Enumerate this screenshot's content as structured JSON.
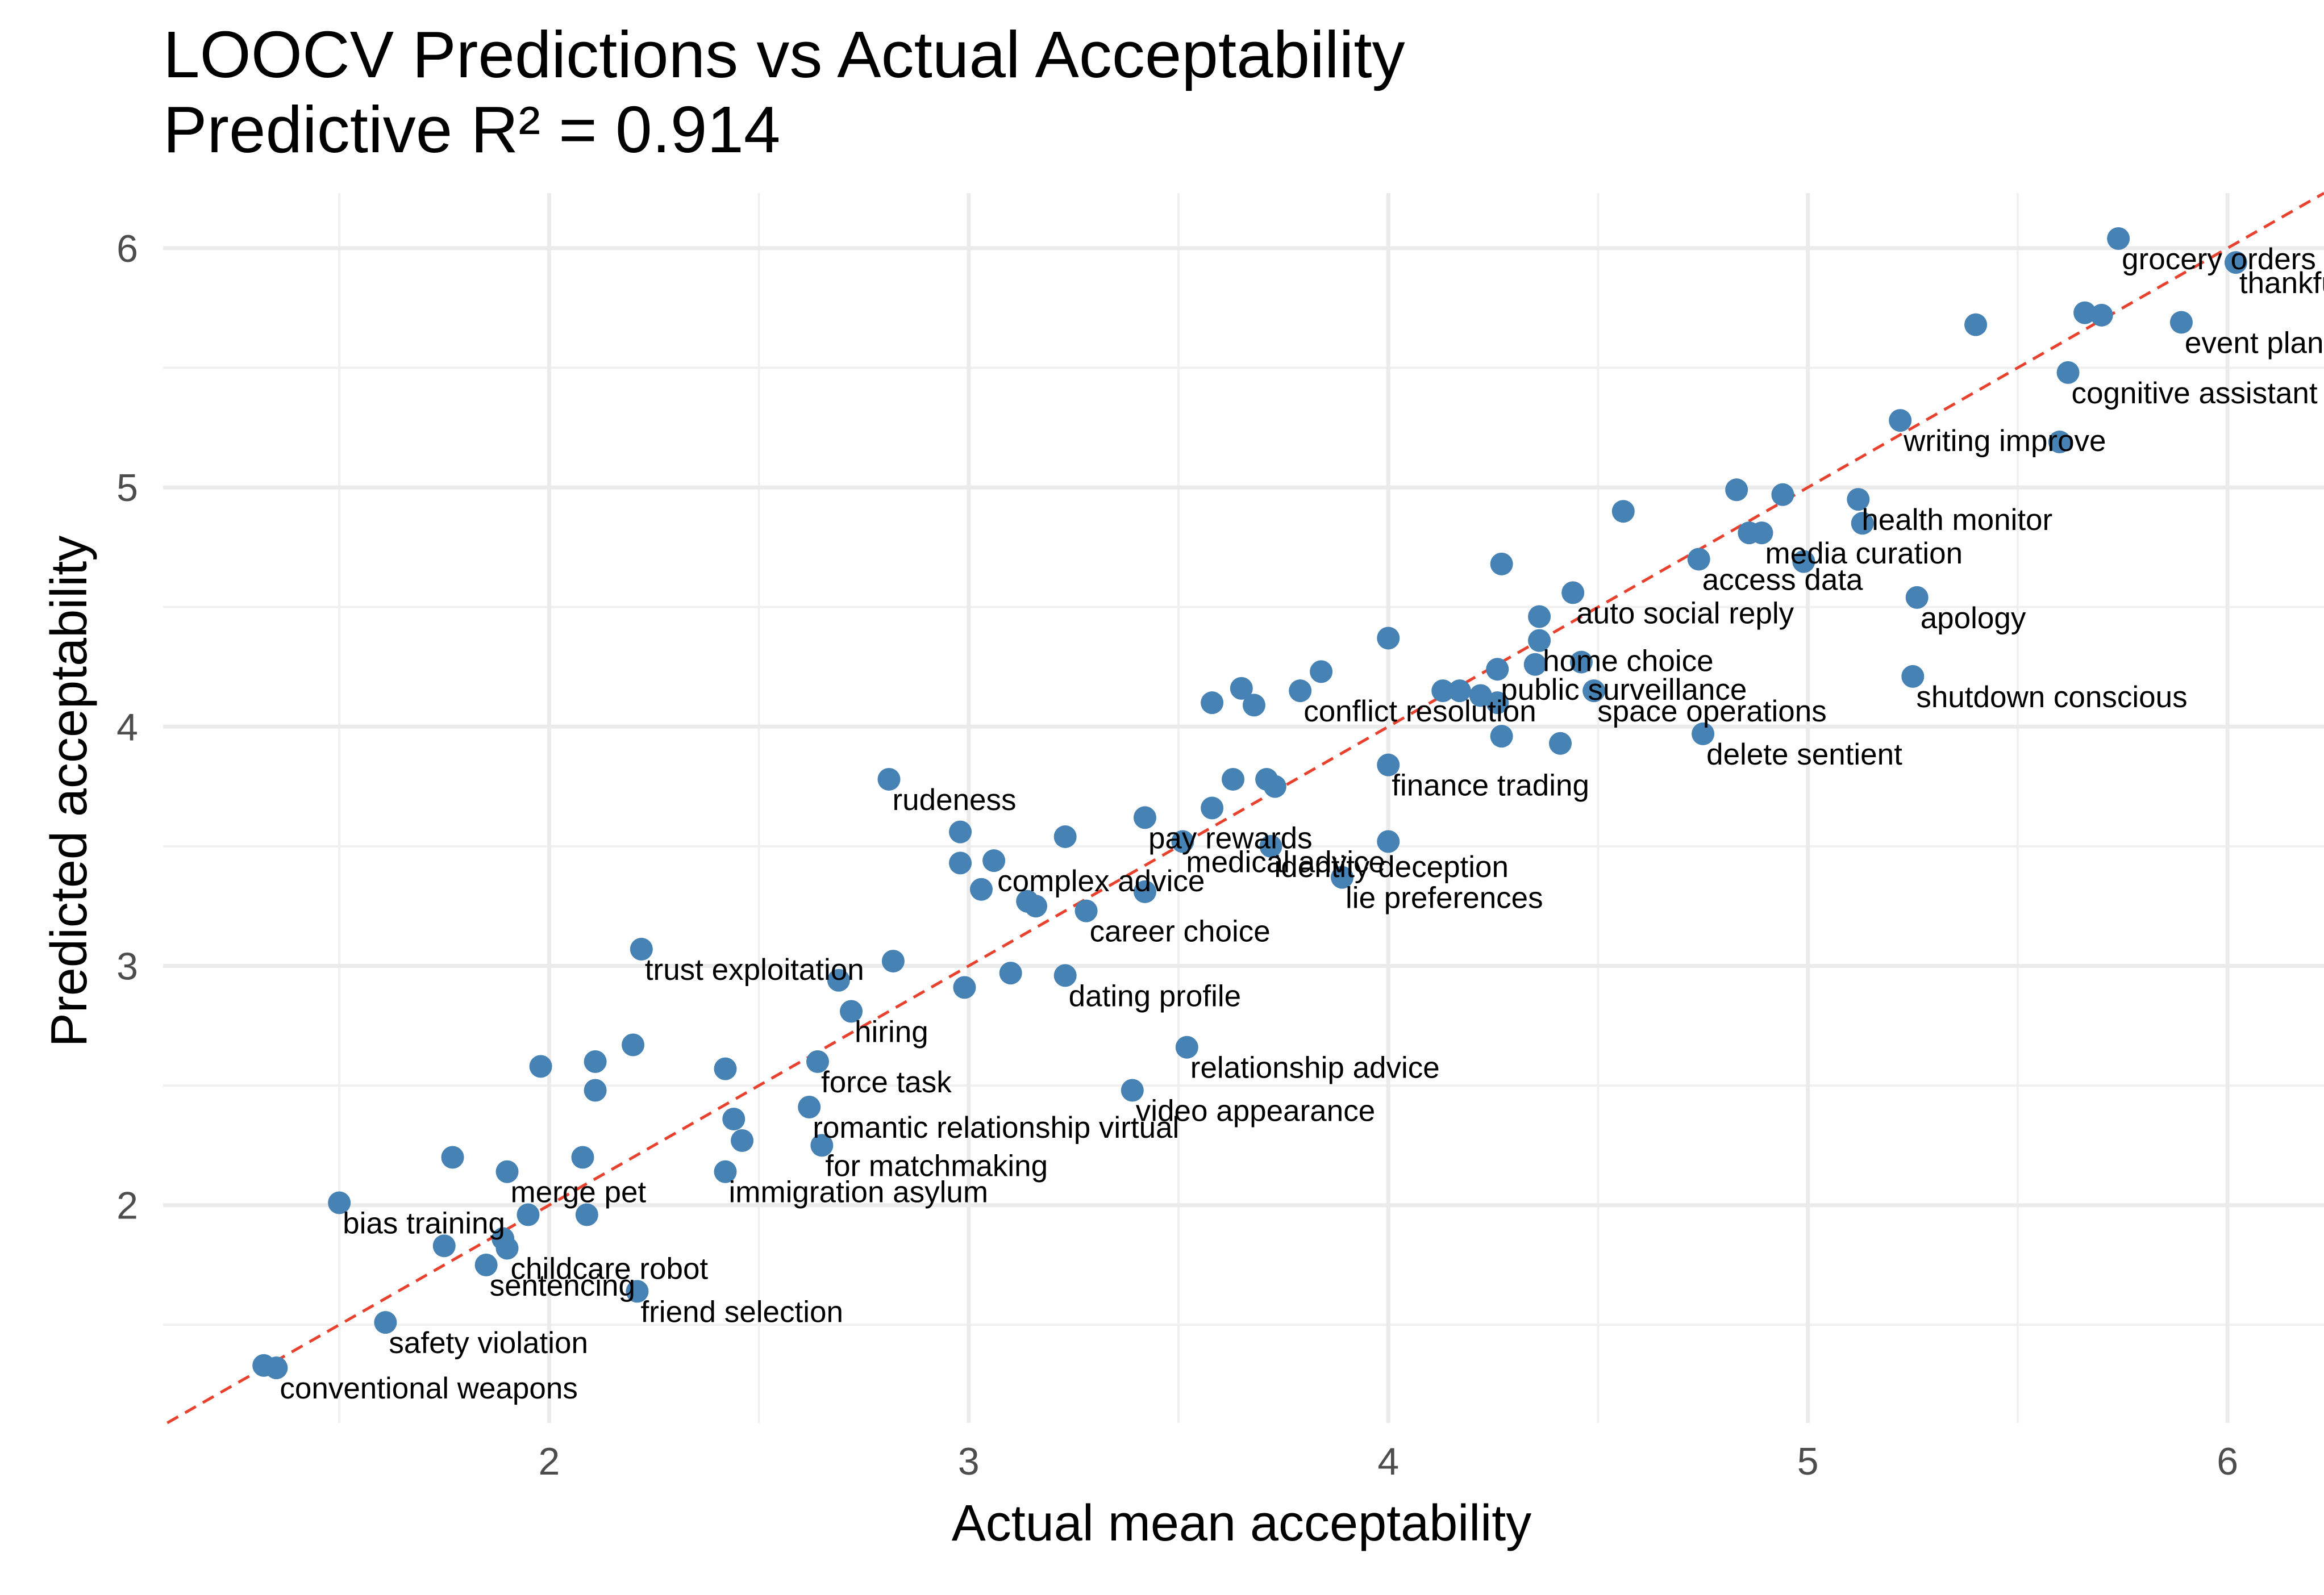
{
  "chart_data": {
    "type": "scatter",
    "title": "LOOCV Predictions vs Actual Acceptability",
    "subtitle": "Predictive R² = 0.914",
    "xlabel": "Actual mean acceptability",
    "ylabel": "Predicted acceptability",
    "xlim": [
      1.08,
      6.23
    ],
    "ylim": [
      1.09,
      6.23
    ],
    "x_ticks": [
      "2",
      "3",
      "4",
      "5",
      "6"
    ],
    "y_ticks": [
      "2",
      "3",
      "4",
      "5",
      "6"
    ],
    "grid": true,
    "point_color": "#4682b4",
    "reference_line": {
      "type": "identity",
      "slope": 1,
      "intercept": 0,
      "style": "dashed",
      "color": "#e8412d"
    },
    "points": [
      {
        "x": 5.74,
        "y": 6.04,
        "label": "grocery orders"
      },
      {
        "x": 6.02,
        "y": 5.94,
        "label": "thankful"
      },
      {
        "x": 5.66,
        "y": 5.73
      },
      {
        "x": 5.7,
        "y": 5.72
      },
      {
        "x": 5.89,
        "y": 5.69,
        "label": "event planning"
      },
      {
        "x": 5.4,
        "y": 5.68
      },
      {
        "x": 5.62,
        "y": 5.48,
        "label": "cognitive assistant"
      },
      {
        "x": 5.22,
        "y": 5.28,
        "label": "writing improve"
      },
      {
        "x": 5.6,
        "y": 5.19
      },
      {
        "x": 4.83,
        "y": 4.99
      },
      {
        "x": 4.94,
        "y": 4.97
      },
      {
        "x": 5.12,
        "y": 4.95,
        "label": "health monitor"
      },
      {
        "x": 4.56,
        "y": 4.9
      },
      {
        "x": 5.13,
        "y": 4.85
      },
      {
        "x": 4.86,
        "y": 4.81
      },
      {
        "x": 4.89,
        "y": 4.81,
        "label": "media curation"
      },
      {
        "x": 4.74,
        "y": 4.7,
        "label": "access data"
      },
      {
        "x": 4.99,
        "y": 4.69
      },
      {
        "x": 4.27,
        "y": 4.68
      },
      {
        "x": 4.44,
        "y": 4.56,
        "label": "auto social reply"
      },
      {
        "x": 5.26,
        "y": 4.54,
        "label": "apology"
      },
      {
        "x": 4.36,
        "y": 4.46
      },
      {
        "x": 4.0,
        "y": 4.37
      },
      {
        "x": 4.36,
        "y": 4.36,
        "label": "home choice"
      },
      {
        "x": 4.46,
        "y": 4.27
      },
      {
        "x": 4.35,
        "y": 4.26
      },
      {
        "x": 4.26,
        "y": 4.24,
        "label": "public surveillance"
      },
      {
        "x": 3.84,
        "y": 4.23
      },
      {
        "x": 5.25,
        "y": 4.21,
        "label": "shutdown conscious"
      },
      {
        "x": 3.65,
        "y": 4.16
      },
      {
        "x": 4.13,
        "y": 4.15
      },
      {
        "x": 4.17,
        "y": 4.15
      },
      {
        "x": 3.79,
        "y": 4.15,
        "label": "conflict resolution"
      },
      {
        "x": 4.49,
        "y": 4.15,
        "label": "space operations"
      },
      {
        "x": 4.22,
        "y": 4.13
      },
      {
        "x": 4.26,
        "y": 4.1
      },
      {
        "x": 3.58,
        "y": 4.1
      },
      {
        "x": 3.68,
        "y": 4.09
      },
      {
        "x": 4.75,
        "y": 3.97,
        "label": "delete sentient"
      },
      {
        "x": 4.27,
        "y": 3.96
      },
      {
        "x": 4.41,
        "y": 3.93
      },
      {
        "x": 4.0,
        "y": 3.84,
        "label": "finance trading"
      },
      {
        "x": 2.81,
        "y": 3.78,
        "label": "rudeness"
      },
      {
        "x": 3.63,
        "y": 3.78
      },
      {
        "x": 3.71,
        "y": 3.78
      },
      {
        "x": 3.73,
        "y": 3.75
      },
      {
        "x": 3.58,
        "y": 3.66
      },
      {
        "x": 3.42,
        "y": 3.62,
        "label": "pay rewards"
      },
      {
        "x": 2.98,
        "y": 3.56
      },
      {
        "x": 3.23,
        "y": 3.54
      },
      {
        "x": 3.51,
        "y": 3.52,
        "label": "medical advice"
      },
      {
        "x": 4.0,
        "y": 3.52
      },
      {
        "x": 3.72,
        "y": 3.5,
        "label": "identity deception"
      },
      {
        "x": 3.06,
        "y": 3.44,
        "label": "complex advice"
      },
      {
        "x": 2.98,
        "y": 3.43
      },
      {
        "x": 3.89,
        "y": 3.37,
        "label": "lie preferences"
      },
      {
        "x": 3.03,
        "y": 3.32
      },
      {
        "x": 3.42,
        "y": 3.31
      },
      {
        "x": 3.14,
        "y": 3.27
      },
      {
        "x": 3.16,
        "y": 3.25
      },
      {
        "x": 3.28,
        "y": 3.23,
        "label": "career choice"
      },
      {
        "x": 2.22,
        "y": 3.07,
        "label": "trust exploitation"
      },
      {
        "x": 2.82,
        "y": 3.02
      },
      {
        "x": 3.1,
        "y": 2.97
      },
      {
        "x": 3.23,
        "y": 2.96,
        "label": "dating profile"
      },
      {
        "x": 2.69,
        "y": 2.94
      },
      {
        "x": 2.99,
        "y": 2.91
      },
      {
        "x": 2.72,
        "y": 2.81,
        "label": "hiring"
      },
      {
        "x": 2.2,
        "y": 2.67
      },
      {
        "x": 3.52,
        "y": 2.66,
        "label": "relationship advice"
      },
      {
        "x": 2.11,
        "y": 2.6
      },
      {
        "x": 2.64,
        "y": 2.6,
        "label": "force task"
      },
      {
        "x": 1.98,
        "y": 2.58
      },
      {
        "x": 2.42,
        "y": 2.57
      },
      {
        "x": 2.11,
        "y": 2.48
      },
      {
        "x": 3.39,
        "y": 2.48,
        "label": "video appearance"
      },
      {
        "x": 2.62,
        "y": 2.41,
        "label": "romantic relationship virtual"
      },
      {
        "x": 2.44,
        "y": 2.36
      },
      {
        "x": 2.46,
        "y": 2.27
      },
      {
        "x": 2.65,
        "y": 2.25,
        "label": "for matchmaking"
      },
      {
        "x": 1.77,
        "y": 2.2
      },
      {
        "x": 2.08,
        "y": 2.2
      },
      {
        "x": 1.9,
        "y": 2.14,
        "label": "merge pet"
      },
      {
        "x": 2.42,
        "y": 2.14,
        "label": "immigration asylum"
      },
      {
        "x": 1.5,
        "y": 2.01,
        "label": "bias training"
      },
      {
        "x": 1.95,
        "y": 1.96
      },
      {
        "x": 2.09,
        "y": 1.96
      },
      {
        "x": 1.89,
        "y": 1.86
      },
      {
        "x": 1.75,
        "y": 1.83
      },
      {
        "x": 1.9,
        "y": 1.82,
        "label": "childcare robot"
      },
      {
        "x": 1.85,
        "y": 1.75,
        "label": "sentencing"
      },
      {
        "x": 2.21,
        "y": 1.64,
        "label": "friend selection"
      },
      {
        "x": 1.61,
        "y": 1.51,
        "label": "safety violation"
      },
      {
        "x": 1.32,
        "y": 1.33
      },
      {
        "x": 1.35,
        "y": 1.32,
        "label": "conventional weapons"
      }
    ]
  }
}
